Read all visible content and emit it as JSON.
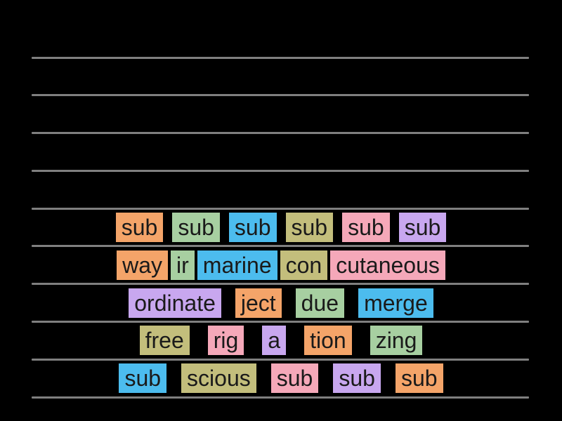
{
  "board": {
    "background_color": "#000000",
    "line_color": "#7f7f7f",
    "line_count": 10,
    "tile_text_color": "#1a1a1a",
    "colors": {
      "orange": "#F4A469",
      "green": "#A7CFA1",
      "blue": "#4CBCEE",
      "olive": "#C3BE7C",
      "pink": "#F5A8B9",
      "purple": "#C8A7EF"
    },
    "rows": [
      {
        "tiles": [
          {
            "text": "sub",
            "color": "orange"
          },
          {
            "text": "sub",
            "color": "green"
          },
          {
            "text": "sub",
            "color": "blue"
          },
          {
            "text": "sub",
            "color": "olive"
          },
          {
            "text": "sub",
            "color": "pink"
          },
          {
            "text": "sub",
            "color": "purple"
          }
        ]
      },
      {
        "tiles": [
          {
            "text": "way",
            "color": "orange"
          },
          {
            "text": "ir",
            "color": "green"
          },
          {
            "text": "marine",
            "color": "blue"
          },
          {
            "text": "con",
            "color": "olive"
          },
          {
            "text": "cutaneous",
            "color": "pink"
          }
        ]
      },
      {
        "tiles": [
          {
            "text": "ordinate",
            "color": "purple"
          },
          {
            "text": "ject",
            "color": "orange"
          },
          {
            "text": "due",
            "color": "green"
          },
          {
            "text": "merge",
            "color": "blue"
          }
        ]
      },
      {
        "tiles": [
          {
            "text": "free",
            "color": "olive"
          },
          {
            "text": "rig",
            "color": "pink"
          },
          {
            "text": "a",
            "color": "purple"
          },
          {
            "text": "tion",
            "color": "orange"
          },
          {
            "text": "zing",
            "color": "green"
          }
        ]
      },
      {
        "tiles": [
          {
            "text": "sub",
            "color": "blue"
          },
          {
            "text": "scious",
            "color": "olive"
          },
          {
            "text": "sub",
            "color": "pink"
          },
          {
            "text": "sub",
            "color": "purple"
          },
          {
            "text": "sub",
            "color": "orange"
          }
        ]
      }
    ]
  }
}
